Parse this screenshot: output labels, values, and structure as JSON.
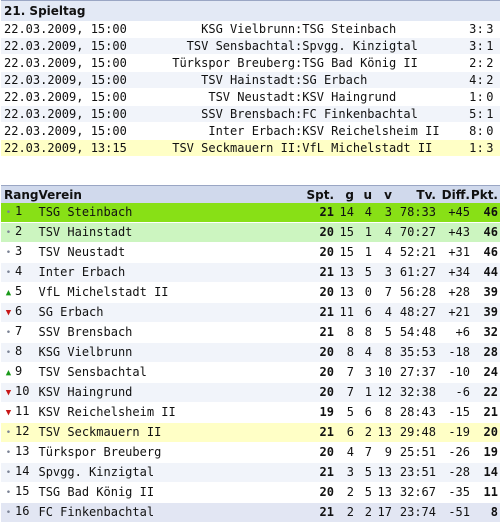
{
  "matchday": {
    "title": "21. Spieltag"
  },
  "results": [
    {
      "date": "22.03.2009, 15:00",
      "home": "KSG Vielbrunn",
      "away": "TSG Steinbach",
      "s1": "3",
      "s2": "3"
    },
    {
      "date": "22.03.2009, 15:00",
      "home": "TSV Sensbachtal",
      "away": "Spvgg. Kinzigtal",
      "s1": "3",
      "s2": "1"
    },
    {
      "date": "22.03.2009, 15:00",
      "home": "Türkspor Breuberg",
      "away": "TSG Bad König II",
      "s1": "2",
      "s2": "2"
    },
    {
      "date": "22.03.2009, 15:00",
      "home": "TSV Hainstadt",
      "away": "SG Erbach",
      "s1": "4",
      "s2": "2"
    },
    {
      "date": "22.03.2009, 15:00",
      "home": "TSV Neustadt",
      "away": "KSV Haingrund",
      "s1": "1",
      "s2": "0"
    },
    {
      "date": "22.03.2009, 15:00",
      "home": "SSV Brensbach",
      "away": "FC Finkenbachtal",
      "s1": "5",
      "s2": "1"
    },
    {
      "date": "22.03.2009, 15:00",
      "home": "Inter Erbach",
      "away": "KSV Reichelsheim II",
      "s1": "8",
      "s2": "0"
    },
    {
      "date": "22.03.2009, 13:15",
      "home": "TSV Seckmauern II",
      "away": "VfL Michelstadt II",
      "s1": "1",
      "s2": "3"
    }
  ],
  "table": {
    "headers": {
      "rank": "Rang",
      "team": "Verein",
      "spt": "Spt.",
      "g": "g",
      "u": "u",
      "v": "v",
      "tv": "Tv.",
      "diff": "Diff.",
      "pkt": "Pkt."
    },
    "rows": [
      {
        "trend": "same",
        "rank": "1",
        "team": "TSG Steinbach",
        "spt": "21",
        "g": "14",
        "u": "4",
        "v": "3",
        "tv": "78:33",
        "diff": "+45",
        "pkt": "46"
      },
      {
        "trend": "same",
        "rank": "2",
        "team": "TSV Hainstadt",
        "spt": "20",
        "g": "15",
        "u": "1",
        "v": "4",
        "tv": "70:27",
        "diff": "+43",
        "pkt": "46"
      },
      {
        "trend": "same",
        "rank": "3",
        "team": "TSV Neustadt",
        "spt": "20",
        "g": "15",
        "u": "1",
        "v": "4",
        "tv": "52:21",
        "diff": "+31",
        "pkt": "46"
      },
      {
        "trend": "same",
        "rank": "4",
        "team": "Inter Erbach",
        "spt": "21",
        "g": "13",
        "u": "5",
        "v": "3",
        "tv": "61:27",
        "diff": "+34",
        "pkt": "44"
      },
      {
        "trend": "up",
        "rank": "5",
        "team": "VfL Michelstadt II",
        "spt": "20",
        "g": "13",
        "u": "0",
        "v": "7",
        "tv": "56:28",
        "diff": "+28",
        "pkt": "39"
      },
      {
        "trend": "down",
        "rank": "6",
        "team": "SG Erbach",
        "spt": "21",
        "g": "11",
        "u": "6",
        "v": "4",
        "tv": "48:27",
        "diff": "+21",
        "pkt": "39"
      },
      {
        "trend": "same",
        "rank": "7",
        "team": "SSV Brensbach",
        "spt": "21",
        "g": "8",
        "u": "8",
        "v": "5",
        "tv": "54:48",
        "diff": "+6",
        "pkt": "32"
      },
      {
        "trend": "same",
        "rank": "8",
        "team": "KSG Vielbrunn",
        "spt": "20",
        "g": "8",
        "u": "4",
        "v": "8",
        "tv": "35:53",
        "diff": "-18",
        "pkt": "28"
      },
      {
        "trend": "up",
        "rank": "9",
        "team": "TSV Sensbachtal",
        "spt": "20",
        "g": "7",
        "u": "3",
        "v": "10",
        "tv": "27:37",
        "diff": "-10",
        "pkt": "24"
      },
      {
        "trend": "down",
        "rank": "10",
        "team": "KSV Haingrund",
        "spt": "20",
        "g": "7",
        "u": "1",
        "v": "12",
        "tv": "32:38",
        "diff": "-6",
        "pkt": "22"
      },
      {
        "trend": "down",
        "rank": "11",
        "team": "KSV Reichelsheim II",
        "spt": "19",
        "g": "5",
        "u": "6",
        "v": "8",
        "tv": "28:43",
        "diff": "-15",
        "pkt": "21"
      },
      {
        "trend": "same",
        "rank": "12",
        "team": "TSV Seckmauern II",
        "spt": "21",
        "g": "6",
        "u": "2",
        "v": "13",
        "tv": "29:48",
        "diff": "-19",
        "pkt": "20"
      },
      {
        "trend": "same",
        "rank": "13",
        "team": "Türkspor Breuberg",
        "spt": "20",
        "g": "4",
        "u": "7",
        "v": "9",
        "tv": "25:51",
        "diff": "-26",
        "pkt": "19"
      },
      {
        "trend": "same",
        "rank": "14",
        "team": "Spvgg. Kinzigtal",
        "spt": "21",
        "g": "3",
        "u": "5",
        "v": "13",
        "tv": "23:51",
        "diff": "-28",
        "pkt": "14"
      },
      {
        "trend": "same",
        "rank": "15",
        "team": "TSG Bad König II",
        "spt": "20",
        "g": "2",
        "u": "5",
        "v": "13",
        "tv": "32:67",
        "diff": "-35",
        "pkt": "11"
      },
      {
        "trend": "same",
        "rank": "16",
        "team": "FC Finkenbachtal",
        "spt": "21",
        "g": "2",
        "u": "2",
        "v": "17",
        "tv": "23:74",
        "diff": "-51",
        "pkt": "8"
      }
    ]
  },
  "icons": {
    "up": "triangle-up-icon",
    "down": "triangle-down-icon",
    "same": "dot-icon"
  },
  "colors": {
    "leader": "#88e016",
    "second": "#ccf5c0",
    "highlight": "#ffffc6",
    "header": "#d0d9ec",
    "up": "#1b9a1b",
    "down": "#c81818"
  }
}
